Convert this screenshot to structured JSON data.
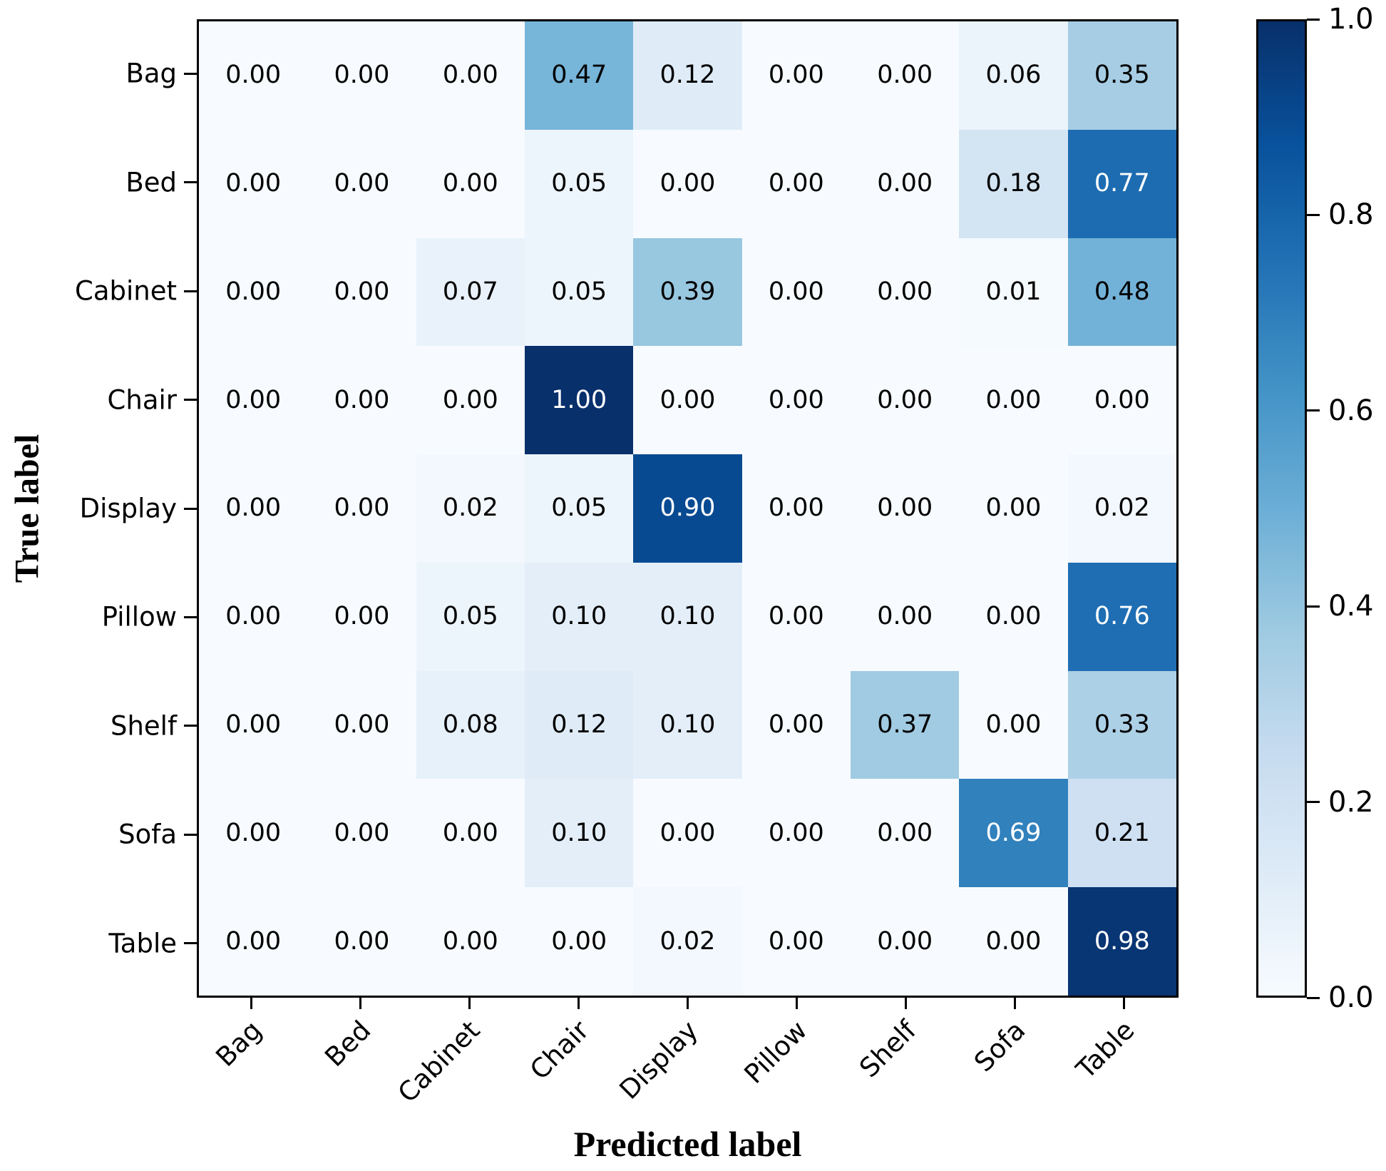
{
  "figure": {
    "background": "#ffffff"
  },
  "chart_data": {
    "type": "heatmap",
    "title": "",
    "xlabel": "Predicted label",
    "ylabel": "True label",
    "x_categories": [
      "Bag",
      "Bed",
      "Cabinet",
      "Chair",
      "Display",
      "Pillow",
      "Shelf",
      "Sofa",
      "Table"
    ],
    "y_categories": [
      "Bag",
      "Bed",
      "Cabinet",
      "Chair",
      "Display",
      "Pillow",
      "Shelf",
      "Sofa",
      "Table"
    ],
    "matrix": [
      [
        0.0,
        0.0,
        0.0,
        0.47,
        0.12,
        0.0,
        0.0,
        0.06,
        0.35
      ],
      [
        0.0,
        0.0,
        0.0,
        0.05,
        0.0,
        0.0,
        0.0,
        0.18,
        0.77
      ],
      [
        0.0,
        0.0,
        0.07,
        0.05,
        0.39,
        0.0,
        0.0,
        0.01,
        0.48
      ],
      [
        0.0,
        0.0,
        0.0,
        1.0,
        0.0,
        0.0,
        0.0,
        0.0,
        0.0
      ],
      [
        0.0,
        0.0,
        0.02,
        0.05,
        0.9,
        0.0,
        0.0,
        0.0,
        0.02
      ],
      [
        0.0,
        0.0,
        0.05,
        0.1,
        0.1,
        0.0,
        0.0,
        0.0,
        0.76
      ],
      [
        0.0,
        0.0,
        0.08,
        0.12,
        0.1,
        0.0,
        0.37,
        0.0,
        0.33
      ],
      [
        0.0,
        0.0,
        0.0,
        0.1,
        0.0,
        0.0,
        0.0,
        0.69,
        0.21
      ],
      [
        0.0,
        0.0,
        0.0,
        0.0,
        0.02,
        0.0,
        0.0,
        0.0,
        0.98
      ]
    ],
    "cell_value_decimals": 2,
    "value_range": [
      0,
      1
    ],
    "grid": false,
    "colormap": "Blues",
    "colormap_anchors": [
      {
        "t": 0.0,
        "color": "#f7fbff"
      },
      {
        "t": 0.125,
        "color": "#deebf7"
      },
      {
        "t": 0.25,
        "color": "#c6dbef"
      },
      {
        "t": 0.375,
        "color": "#9ecae1"
      },
      {
        "t": 0.5,
        "color": "#6baed6"
      },
      {
        "t": 0.625,
        "color": "#4292c6"
      },
      {
        "t": 0.75,
        "color": "#2171b5"
      },
      {
        "t": 0.875,
        "color": "#08519c"
      },
      {
        "t": 1.0,
        "color": "#08306b"
      }
    ],
    "cell_text_colors": {
      "light": "#ffffff",
      "dark": "#000000"
    },
    "text_color_threshold": 0.5,
    "colorbar": {
      "position": "right",
      "min": 0.0,
      "max": 1.0,
      "ticks": [
        1.0,
        0.8,
        0.6,
        0.4,
        0.2,
        0.0
      ],
      "tick_labels": [
        "1.0",
        "0.8",
        "0.6",
        "0.4",
        "0.2",
        "0.0"
      ]
    }
  }
}
